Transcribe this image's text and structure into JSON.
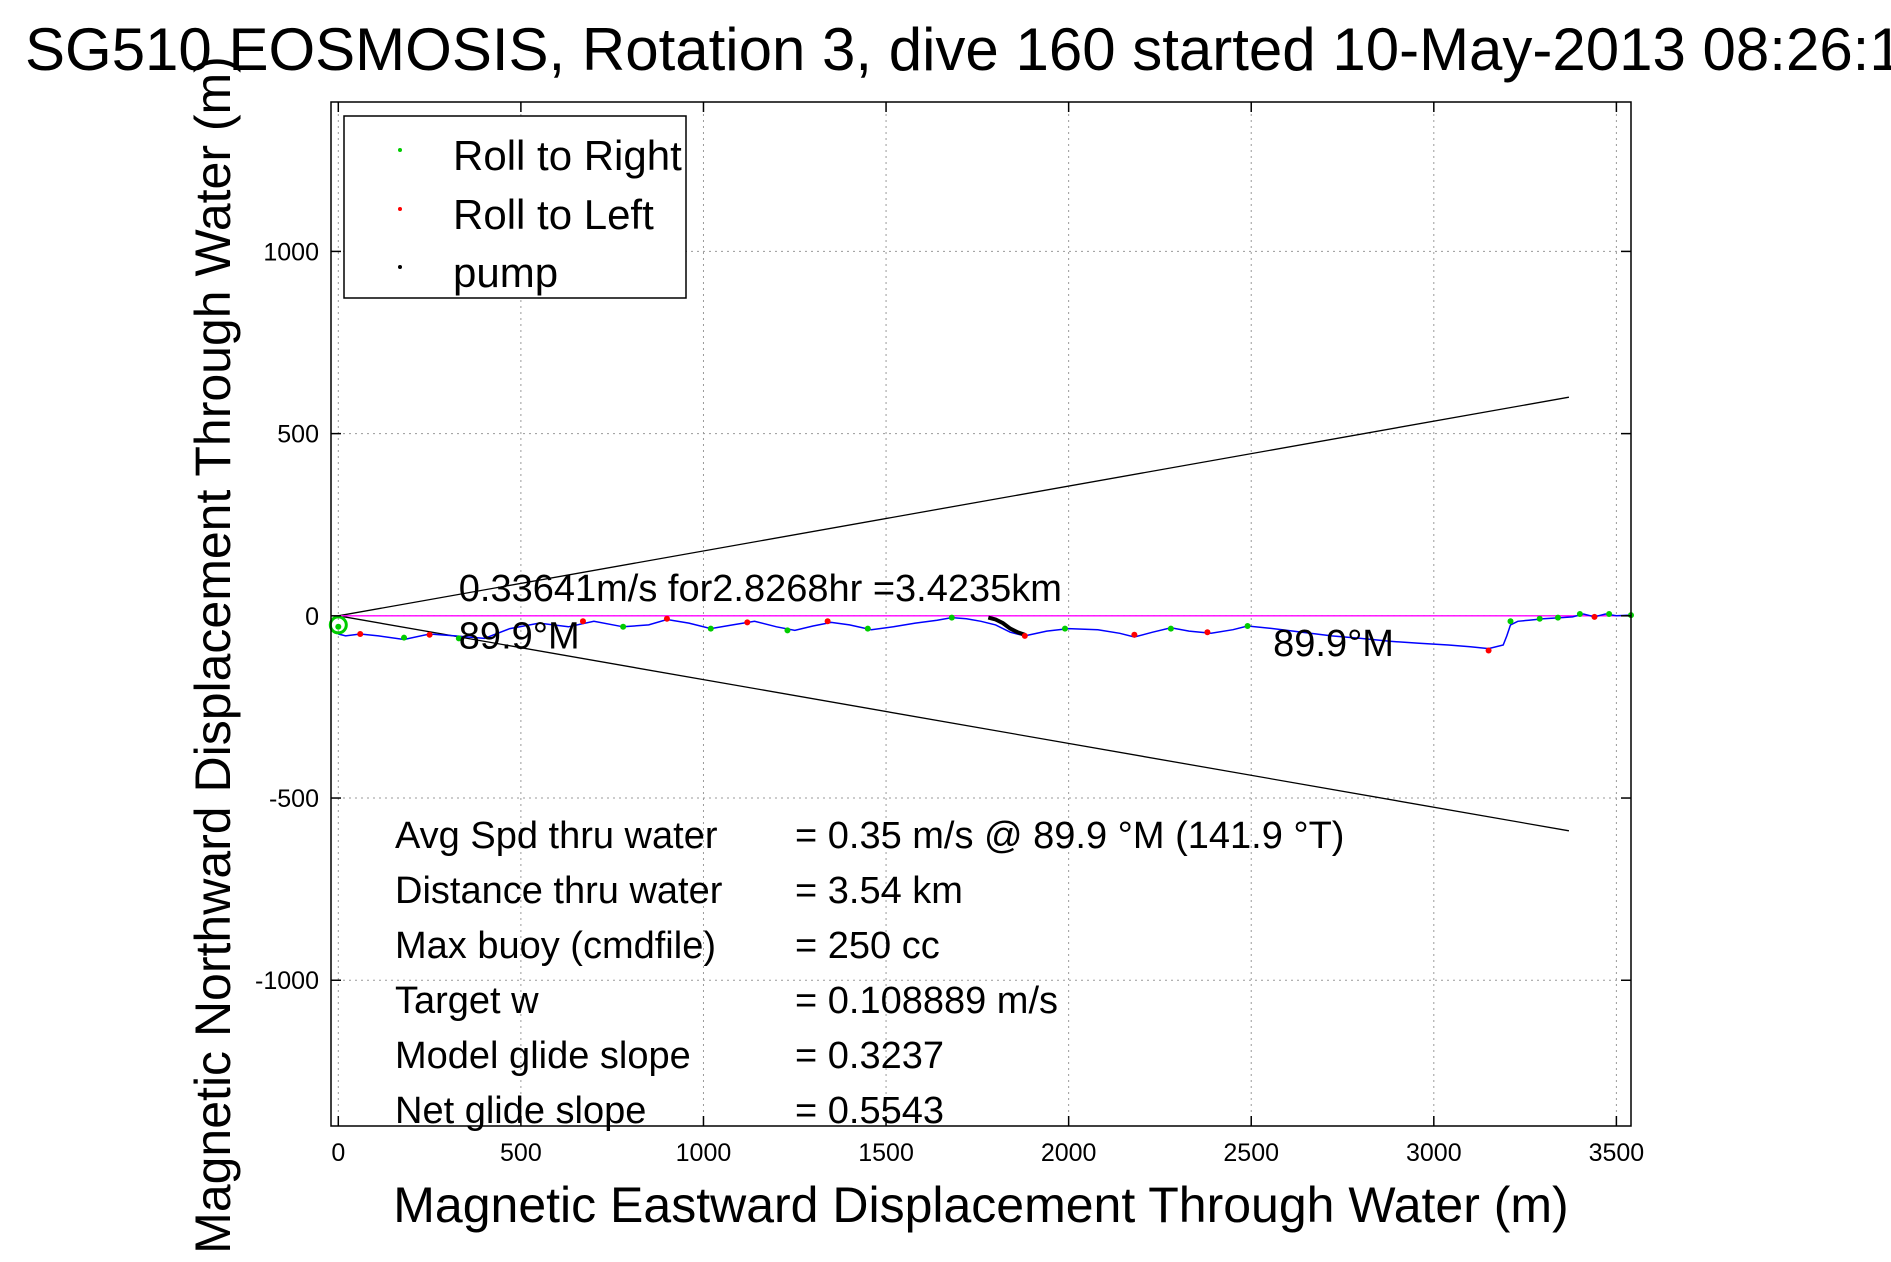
{
  "chart_data": {
    "type": "scatter",
    "title": "SG510 EOSMOSIS, Rotation 3, dive 160 started 10-May-2013 08:26:1",
    "xlabel": "Magnetic Eastward Displacement Through Water (m)",
    "ylabel": "Magnetic Northward Displacement Through Water (m)",
    "xlim": [
      -20,
      3540
    ],
    "ylim": [
      -1400,
      1410
    ],
    "x_ticks": [
      0,
      500,
      1000,
      1500,
      2000,
      2500,
      3000,
      3500
    ],
    "y_ticks": [
      1000,
      500,
      0,
      -500,
      -1000
    ],
    "x_tick_labels": [
      "0",
      "500",
      "1000",
      "1500",
      "2000",
      "2500",
      "3000",
      "3500"
    ],
    "y_tick_labels": [
      "1000",
      "500",
      "0",
      "-500",
      "-1000"
    ],
    "grid": true,
    "legend_position": "top-left",
    "legend": [
      {
        "label": "Roll to Right",
        "color": "#00cc00"
      },
      {
        "label": "Roll to Left",
        "color": "#ff0000"
      },
      {
        "label": "pump",
        "color": "#000000"
      }
    ],
    "track": {
      "color": "#0000ff",
      "x": [
        0,
        20,
        60,
        110,
        180,
        250,
        320,
        400,
        470,
        550,
        630,
        700,
        780,
        850,
        900,
        960,
        1020,
        1080,
        1140,
        1200,
        1250,
        1300,
        1350,
        1400,
        1460,
        1520,
        1580,
        1640,
        1680,
        1720,
        1760,
        1800,
        1840,
        1880,
        1940,
        2000,
        2080,
        2140,
        2180,
        2230,
        2280,
        2330,
        2390,
        2450,
        2490,
        2560,
        2640,
        2720,
        2800,
        2880,
        2960,
        3040,
        3100,
        3150,
        3190,
        3200,
        3210,
        3230,
        3260,
        3300,
        3350,
        3380,
        3410,
        3440,
        3470,
        3500,
        3540
      ],
      "y": [
        -50,
        -55,
        -50,
        -55,
        -65,
        -50,
        -55,
        -62,
        -35,
        -20,
        -30,
        -15,
        -30,
        -25,
        -10,
        -20,
        -35,
        -25,
        -15,
        -30,
        -40,
        -28,
        -18,
        -25,
        -38,
        -30,
        -20,
        -12,
        -5,
        -8,
        -15,
        -25,
        -45,
        -55,
        -42,
        -35,
        -38,
        -48,
        -58,
        -45,
        -33,
        -42,
        -48,
        -38,
        -28,
        -35,
        -45,
        -55,
        -62,
        -70,
        -75,
        -80,
        -85,
        -90,
        -80,
        -55,
        -25,
        -15,
        -12,
        -8,
        -5,
        -3,
        5,
        -3,
        5,
        0,
        2
      ]
    },
    "roll_right_points": {
      "color": "#00cc00",
      "x": [
        0,
        180,
        330,
        780,
        1020,
        1230,
        1450,
        1680,
        1990,
        2280,
        2490,
        3210,
        3290,
        3340,
        3400,
        3480,
        3540
      ],
      "y": [
        -30,
        -60,
        -62,
        -30,
        -35,
        -40,
        -35,
        -5,
        -35,
        -35,
        -28,
        -15,
        -8,
        -5,
        5,
        5,
        2
      ]
    },
    "roll_left_points": {
      "color": "#ff0000",
      "x": [
        60,
        250,
        670,
        900,
        1120,
        1340,
        1880,
        2180,
        2380,
        3150,
        3440
      ],
      "y": [
        -50,
        -52,
        -15,
        -8,
        -18,
        -15,
        -55,
        -52,
        -45,
        -95,
        -3
      ]
    },
    "pump_segment": {
      "color": "#000000",
      "x": [
        1780,
        1800,
        1820,
        1840,
        1860,
        1880
      ],
      "y": [
        -5,
        -10,
        -20,
        -35,
        -45,
        -52
      ]
    },
    "target_line": {
      "color": "#ff00ff",
      "x": [
        0,
        3540
      ],
      "y": [
        0,
        0
      ]
    },
    "cone_upper": {
      "color": "#000000",
      "x": [
        0,
        3370
      ],
      "y": [
        0,
        600
      ]
    },
    "cone_lower": {
      "color": "#000000",
      "x": [
        0,
        3370
      ],
      "y": [
        0,
        -590
      ]
    },
    "annotations": [
      {
        "text": "0.33641m/s for2.8268hr =3.4235km",
        "x": 330,
        "y": 40
      },
      {
        "text": "89.9°M",
        "x": 330,
        "y": -90
      },
      {
        "text": "89.9°M",
        "x": 2560,
        "y": -110
      }
    ],
    "stats": [
      {
        "label": "Avg Spd thru water",
        "value": "=  0.35 m/s @  89.9 °M (141.9 °T)"
      },
      {
        "label": "Distance thru water",
        "value": "=  3.54 km"
      },
      {
        "label": "Max buoy (cmdfile)",
        "value": "= 250 cc"
      },
      {
        "label": "Target w",
        "value": "= 0.108889 m/s"
      },
      {
        "label": "Model glide slope",
        "value": "= 0.3237"
      },
      {
        "label": "Net glide slope",
        "value": "= 0.5543"
      }
    ]
  }
}
